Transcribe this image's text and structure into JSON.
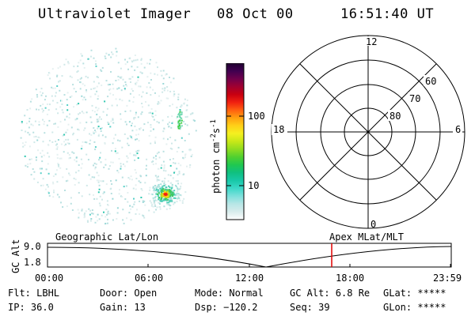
{
  "header": {
    "instrument": "Ultraviolet Imager",
    "date": "08 Oct 00",
    "time": "16:51:40 UT"
  },
  "colorbar": {
    "unit_label": "photon cm",
    "unit_exp1": "-2",
    "unit_s": "s",
    "unit_exp2": "-1",
    "ticks": [
      "100",
      "10"
    ],
    "colors": [
      "#ffffff",
      "#d8ecec",
      "#b8e6e6",
      "#7ee0dc",
      "#3cd8c8",
      "#18c8a8",
      "#10c080",
      "#20c850",
      "#50d030",
      "#90dc20",
      "#c8e818",
      "#f4f020",
      "#ffd018",
      "#ffa010",
      "#ff6010",
      "#f02010",
      "#c80010",
      "#a00030",
      "#70004c",
      "#400050",
      "#200030"
    ]
  },
  "polar_plot": {
    "top_label": "12",
    "left_label": "18",
    "right_label": "6",
    "bottom_label": "0",
    "lat_labels": [
      "60",
      "70",
      "80"
    ]
  },
  "timeline": {
    "ylabel": "GC Alt",
    "y_top": "9.0",
    "y_bottom": "1.8",
    "left_title": "Geographic Lat/Lon",
    "right_title": "Apex MLat/MLT",
    "x_ticks": [
      "00:00",
      "06:00",
      "12:00",
      "18:00",
      "23:59"
    ],
    "marker_color": "#e00000"
  },
  "info": {
    "filter": "Flt: LBHL",
    "ip": "IP: 36.0",
    "door": "Door: Open",
    "gain": "Gain: 13",
    "mode": "Mode: Normal",
    "dsp": "Dsp: −120.2",
    "gc_alt": "GC Alt: 6.8 Re",
    "seq": "Seq: 39",
    "glat": "GLat: *****",
    "glon": "GLon: *****"
  }
}
